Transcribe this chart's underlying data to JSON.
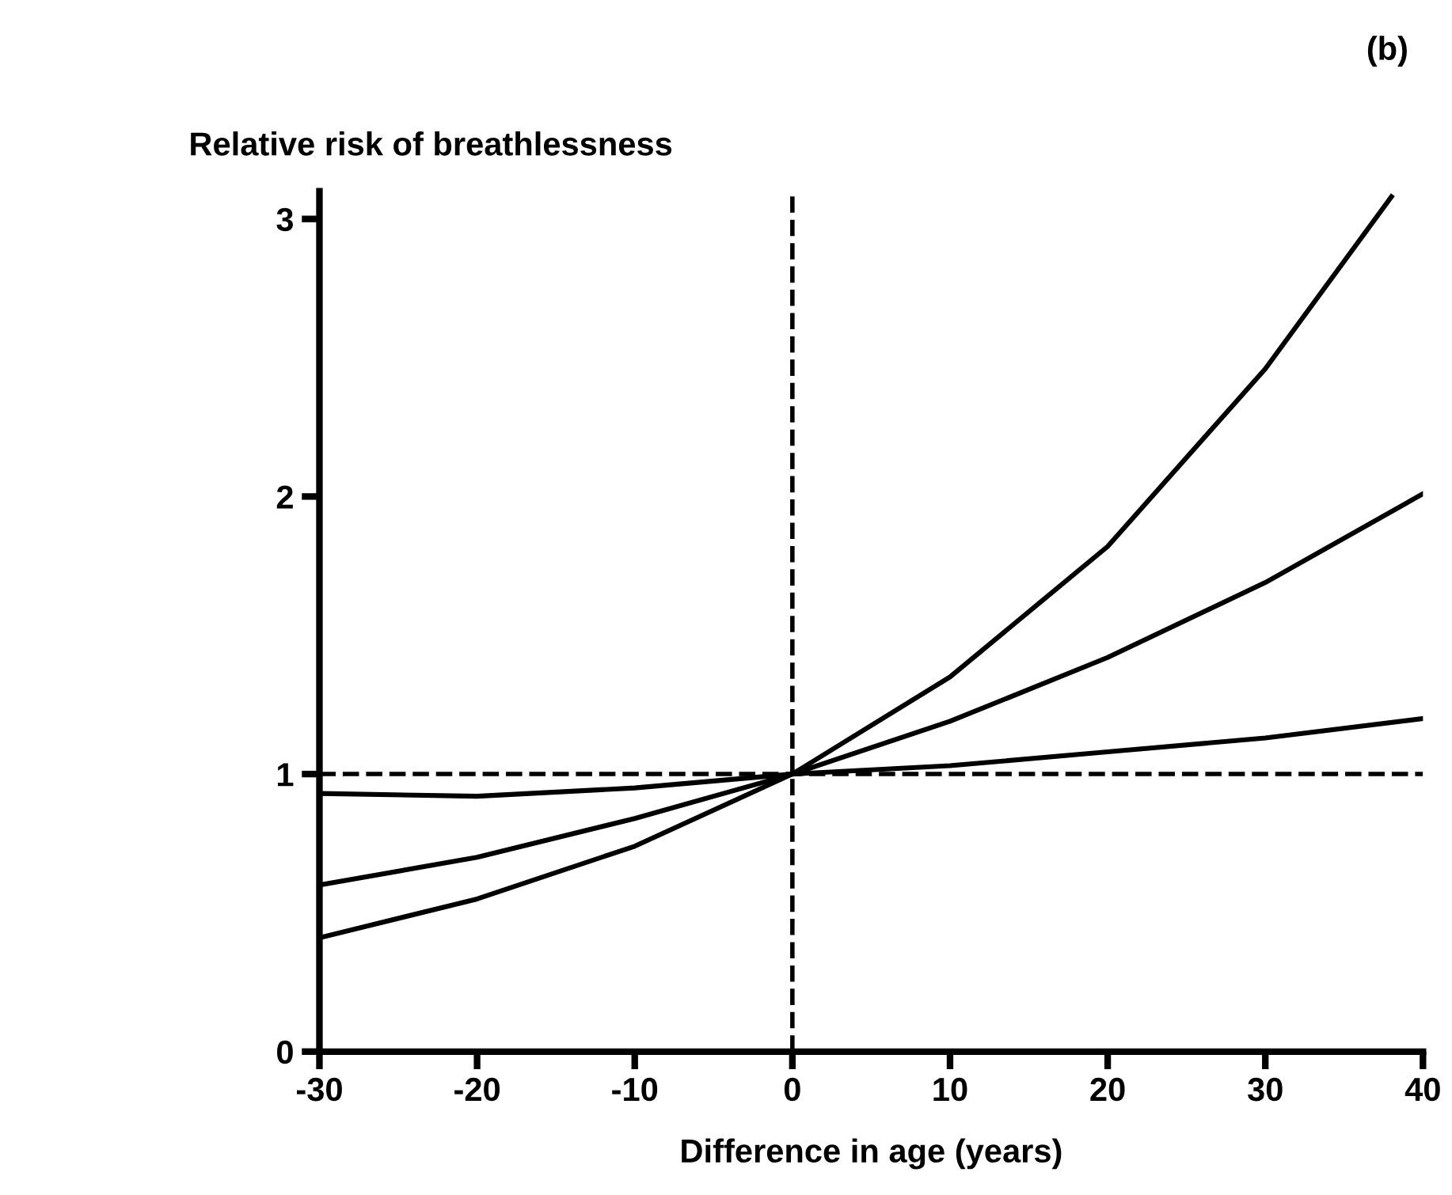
{
  "chart_data": {
    "type": "line",
    "ylabel": "Relative risk of breathlessness",
    "xlabel": "Difference in age (years)",
    "annotations": [
      "(b)"
    ],
    "series": [
      {
        "color": "#000000",
        "x": [
          -30,
          -20,
          -10,
          0,
          10,
          20,
          30,
          38
        ],
        "values": [
          0.41,
          0.55,
          0.74,
          1.0,
          1.35,
          1.82,
          2.46,
          3.08
        ]
      },
      {
        "color": "#000000",
        "x": [
          -30,
          -20,
          -10,
          0,
          10,
          20,
          30,
          40
        ],
        "values": [
          0.6,
          0.7,
          0.84,
          1.0,
          1.19,
          1.42,
          1.69,
          2.01
        ]
      },
      {
        "color": "#000000",
        "x": [
          -30,
          -20,
          -10,
          0,
          10,
          20,
          30,
          40
        ],
        "values": [
          0.93,
          0.92,
          0.95,
          1.0,
          1.03,
          1.08,
          1.13,
          1.2
        ]
      }
    ],
    "xlim": [
      -30,
      40
    ],
    "xticks": [
      -30,
      -20,
      -10,
      0,
      10,
      20,
      30,
      40
    ],
    "ylim": [
      0,
      3.1
    ],
    "yticks": [
      0,
      1,
      2,
      3
    ],
    "ref_lines": [
      {
        "axis": "y",
        "value": 1,
        "line_style": "dashed",
        "color": "#000000"
      },
      {
        "axis": "x",
        "value": 0,
        "line_style": "dashed",
        "color": "#000000"
      }
    ],
    "grid": false,
    "legend": false,
    "marker": "none",
    "line_style": "solid"
  }
}
